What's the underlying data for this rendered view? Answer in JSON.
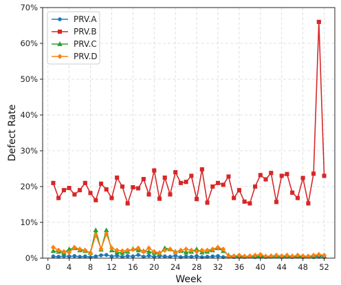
{
  "chart_data": {
    "type": "line",
    "title": "",
    "xlabel": "Week",
    "ylabel": "Defect Rate",
    "xlim": [
      -1,
      54
    ],
    "ylim": [
      0,
      0.7
    ],
    "x_ticks": [
      0,
      4,
      8,
      12,
      16,
      20,
      24,
      28,
      32,
      36,
      40,
      44,
      48,
      52
    ],
    "x_tick_labels": [
      "0",
      "4",
      "8",
      "12",
      "16",
      "20",
      "24",
      "28",
      "32",
      "36",
      "40",
      "44",
      "48",
      "52"
    ],
    "y_ticks": [
      0,
      0.1,
      0.2,
      0.3,
      0.4,
      0.5,
      0.6,
      0.7
    ],
    "y_tick_labels": [
      "0%",
      "10%",
      "20%",
      "30%",
      "40%",
      "50%",
      "60%",
      "70%"
    ],
    "grid": true,
    "legend_position": "top-left",
    "x": [
      1,
      2,
      3,
      4,
      5,
      6,
      7,
      8,
      9,
      10,
      11,
      12,
      13,
      14,
      15,
      16,
      17,
      18,
      19,
      20,
      21,
      22,
      23,
      24,
      25,
      26,
      27,
      28,
      29,
      30,
      31,
      32,
      33,
      34,
      35,
      36,
      37,
      38,
      39,
      40,
      41,
      42,
      43,
      44,
      45,
      46,
      47,
      48,
      49,
      50,
      51,
      52
    ],
    "series": [
      {
        "name": "PRV.A",
        "color": "#1f77b4",
        "marker": "circle",
        "values": [
          0.005,
          0.004,
          0.006,
          0.005,
          0.006,
          0.004,
          0.005,
          0.003,
          0.005,
          0.008,
          0.009,
          0.005,
          0.007,
          0.004,
          0.006,
          0.005,
          0.009,
          0.004,
          0.007,
          0.004,
          0.006,
          0.005,
          0.004,
          0.007,
          0.003,
          0.005,
          0.004,
          0.006,
          0.003,
          0.004,
          0.005,
          0.006,
          0.003,
          0.004,
          0.003,
          0.004,
          0.003,
          0.005,
          0.003,
          0.004,
          0.003,
          0.004,
          0.005,
          0.003,
          0.004,
          0.003,
          0.004,
          0.003,
          0.005,
          0.003,
          0.004,
          0.003
        ]
      },
      {
        "name": "PRV.B",
        "color": "#d62728",
        "marker": "square",
        "values": [
          0.21,
          0.168,
          0.19,
          0.196,
          0.178,
          0.19,
          0.21,
          0.182,
          0.162,
          0.208,
          0.192,
          0.168,
          0.225,
          0.2,
          0.153,
          0.198,
          0.195,
          0.221,
          0.178,
          0.245,
          0.166,
          0.225,
          0.178,
          0.24,
          0.21,
          0.213,
          0.23,
          0.165,
          0.248,
          0.155,
          0.2,
          0.21,
          0.205,
          0.228,
          0.168,
          0.19,
          0.158,
          0.153,
          0.2,
          0.232,
          0.22,
          0.238,
          0.157,
          0.23,
          0.235,
          0.183,
          0.168,
          0.224,
          0.153,
          0.236,
          0.66,
          0.23
        ]
      },
      {
        "name": "PRV.C",
        "color": "#2ca02c",
        "marker": "triangle",
        "values": [
          0.02,
          0.018,
          0.015,
          0.025,
          0.028,
          0.022,
          0.02,
          0.015,
          0.078,
          0.024,
          0.078,
          0.022,
          0.016,
          0.015,
          0.018,
          0.026,
          0.022,
          0.02,
          0.018,
          0.015,
          0.012,
          0.028,
          0.025,
          0.018,
          0.02,
          0.016,
          0.018,
          0.025,
          0.016,
          0.018,
          0.022,
          0.028,
          0.02,
          0.008,
          0.005,
          0.006,
          0.005,
          0.006,
          0.005,
          0.006,
          0.005,
          0.006,
          0.005,
          0.006,
          0.005,
          0.006,
          0.005,
          0.006,
          0.005,
          0.005,
          0.01,
          0.005
        ]
      },
      {
        "name": "PRV.D",
        "color": "#ff7f0e",
        "marker": "diamond",
        "values": [
          0.03,
          0.022,
          0.018,
          0.016,
          0.03,
          0.025,
          0.022,
          0.015,
          0.065,
          0.026,
          0.068,
          0.028,
          0.022,
          0.02,
          0.022,
          0.024,
          0.028,
          0.018,
          0.028,
          0.018,
          0.015,
          0.022,
          0.025,
          0.016,
          0.022,
          0.025,
          0.022,
          0.018,
          0.022,
          0.022,
          0.025,
          0.03,
          0.025,
          0.005,
          0.006,
          0.008,
          0.005,
          0.006,
          0.008,
          0.01,
          0.005,
          0.006,
          0.008,
          0.006,
          0.008,
          0.005,
          0.008,
          0.006,
          0.005,
          0.008,
          0.01,
          0.008
        ]
      }
    ]
  }
}
